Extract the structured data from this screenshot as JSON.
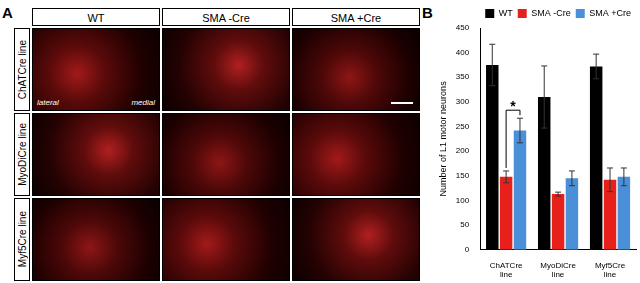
{
  "figure": {
    "panel_a": {
      "label": "A",
      "columns": [
        "WT",
        "SMA -Cre",
        "SMA +Cre"
      ],
      "rows": [
        "ChATCre line",
        "MyoDiCre line",
        "Myf5Cre line"
      ],
      "orientation_labels": [
        "lateral",
        "medial"
      ]
    },
    "panel_b_label": "B"
  },
  "chart_data": {
    "type": "bar",
    "y_label": "Number of L1 motor neurons",
    "categories": [
      "ChATCre line",
      "MyoDiCre line",
      "Myf5Cre line"
    ],
    "series": [
      {
        "name": "WT",
        "color": "#000000",
        "values": [
          375,
          310,
          372
        ],
        "errors": [
          42,
          63,
          25
        ]
      },
      {
        "name": "SMA -Cre",
        "color": "#e8201c",
        "values": [
          148,
          113,
          142
        ],
        "errors": [
          12,
          4,
          24
        ]
      },
      {
        "name": "SMA +Cre",
        "color": "#4a90d9",
        "values": [
          242,
          145,
          148
        ],
        "errors": [
          25,
          15,
          18
        ]
      }
    ],
    "ylim": [
      0,
      450
    ],
    "yticks": [
      0,
      50,
      100,
      150,
      200,
      250,
      300,
      350,
      400,
      450
    ],
    "grid": false,
    "legend": "upper right",
    "annotations": [
      {
        "text": "*",
        "category": "ChATCre line",
        "between": [
          "SMA -Cre",
          "SMA +Cre"
        ]
      }
    ]
  }
}
